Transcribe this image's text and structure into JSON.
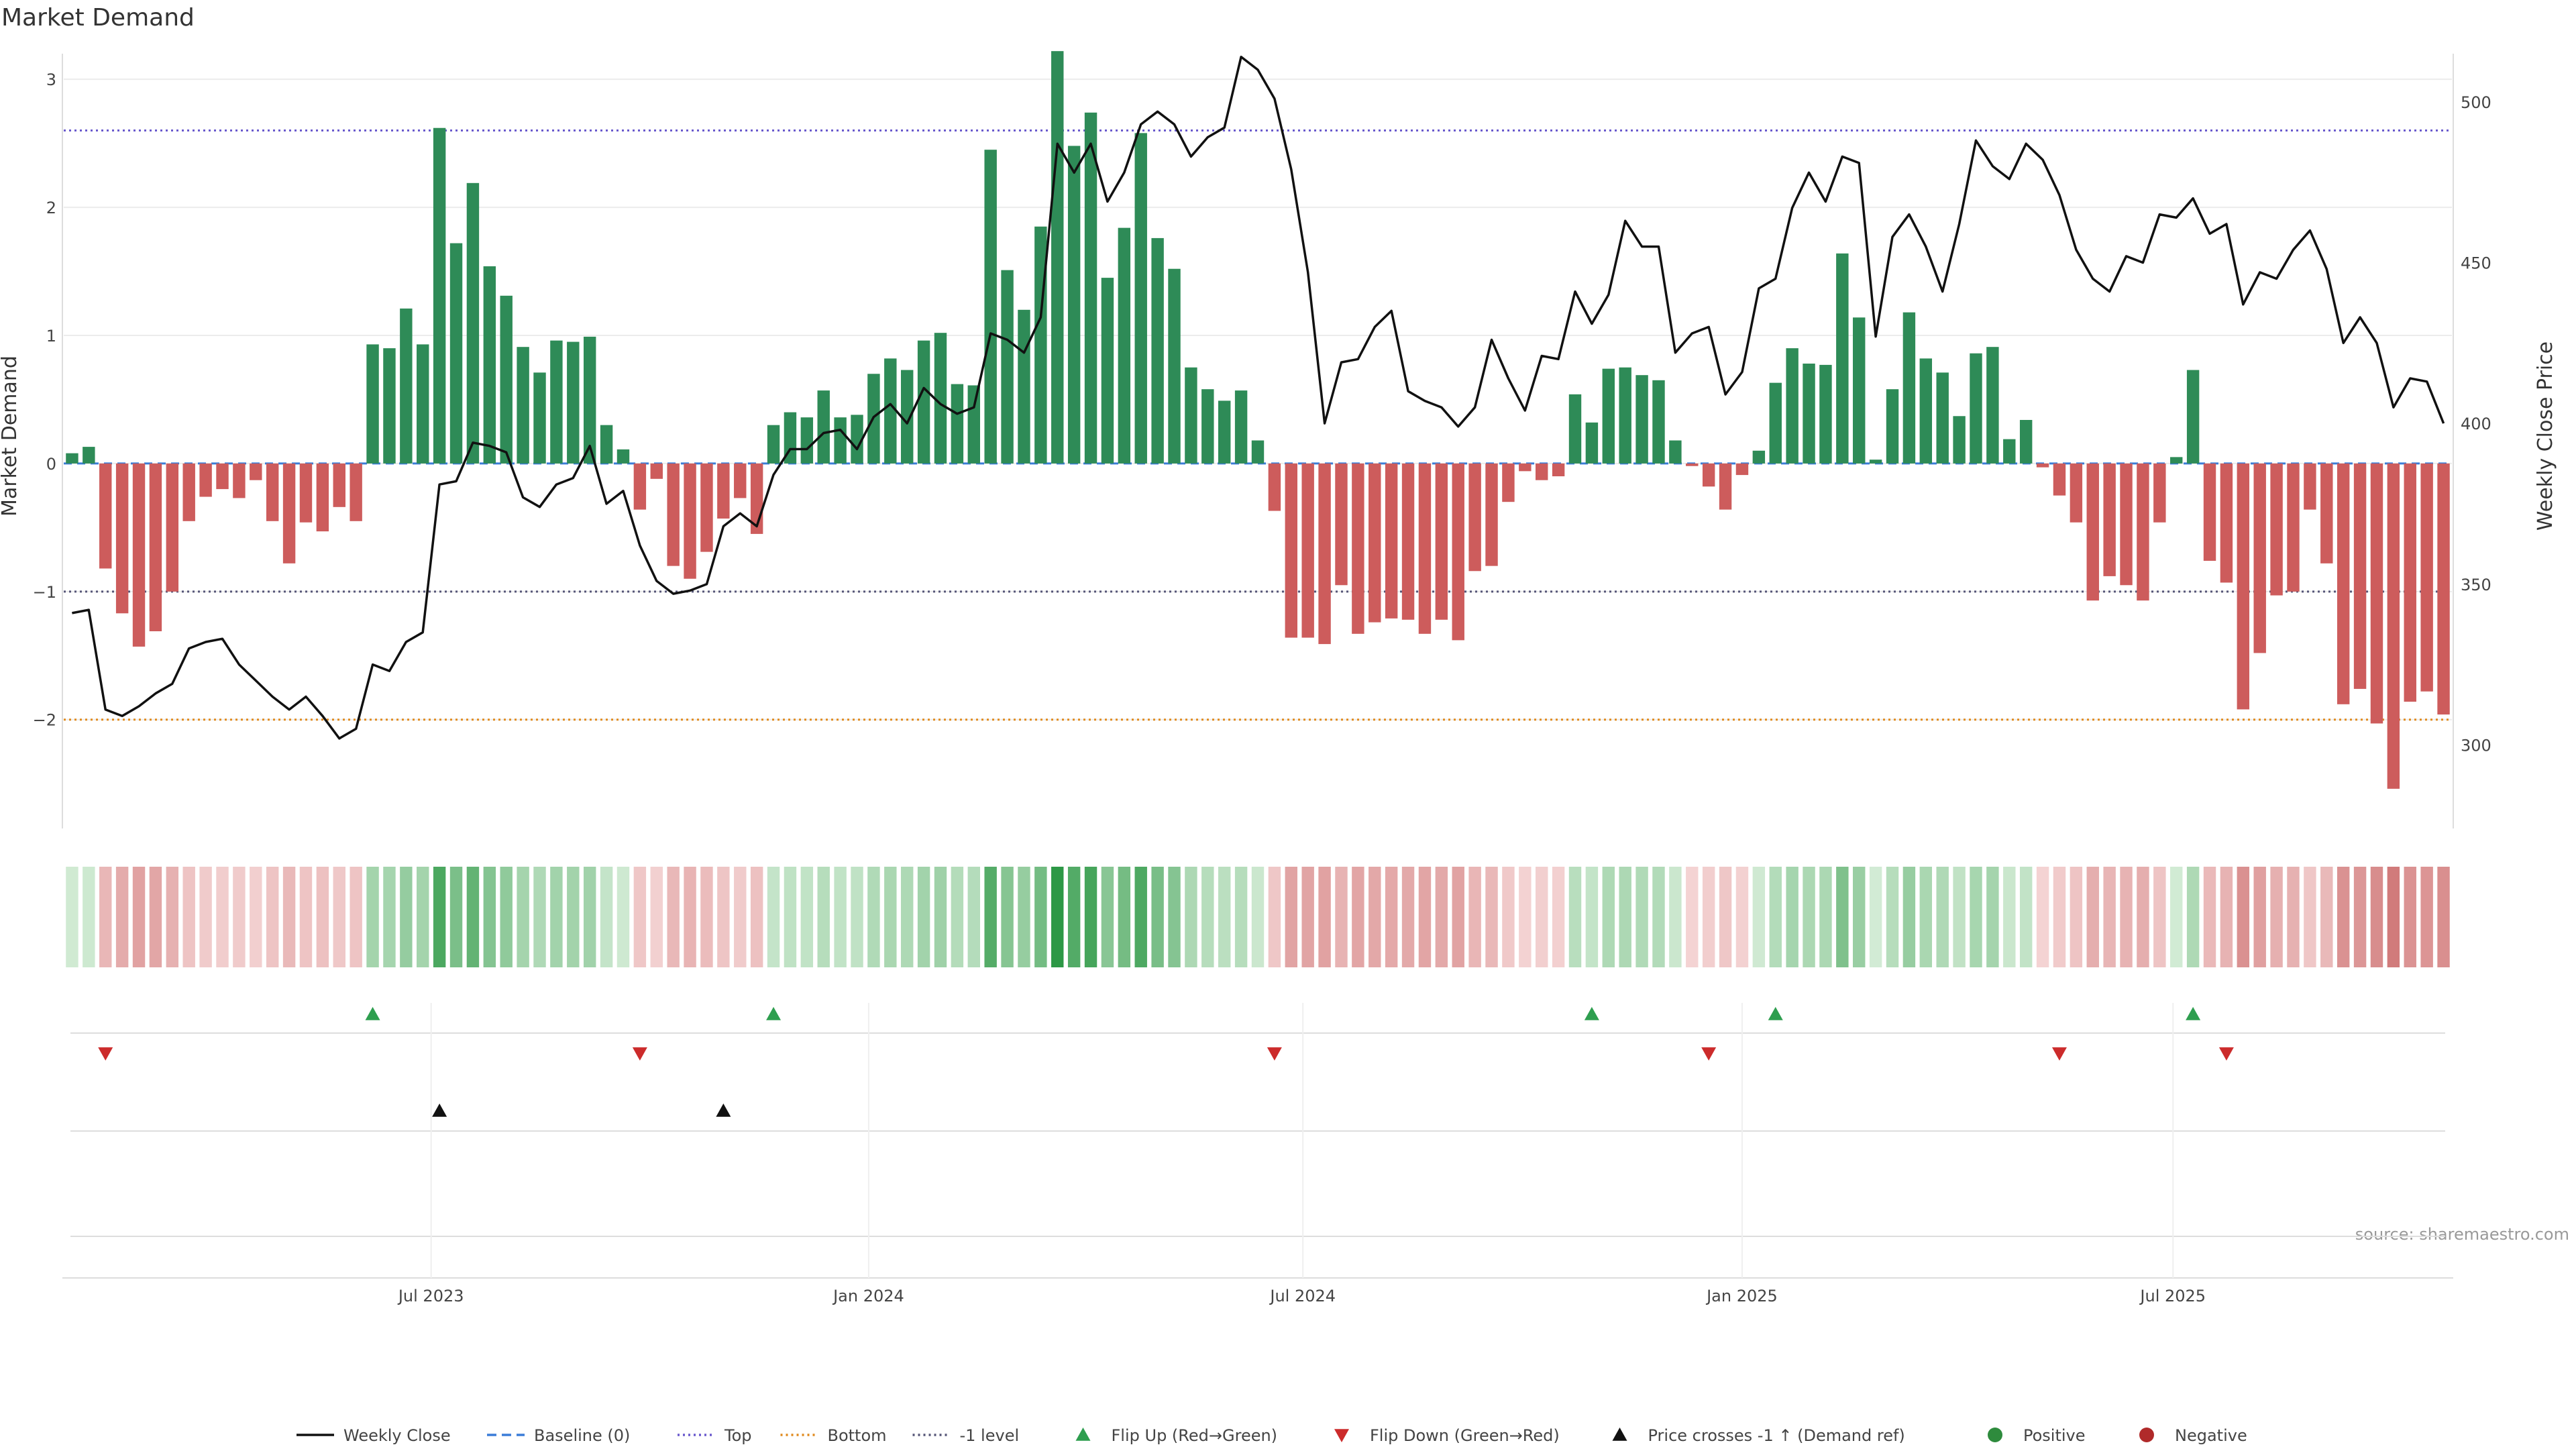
{
  "chart_data": {
    "type": "bar",
    "title": "Market Demand",
    "ylabel": "Market Demand",
    "ylabel_right": "Weekly Close Price",
    "ylim": [
      -2.85,
      3.2
    ],
    "ylim_right": [
      274,
      515
    ],
    "yticks": [
      {
        "v": 3,
        "label": "3"
      },
      {
        "v": 2,
        "label": "2"
      },
      {
        "v": 1,
        "label": "1"
      },
      {
        "v": 0,
        "label": "0"
      },
      {
        "v": -1,
        "label": "−1"
      },
      {
        "v": -2,
        "label": "−2"
      }
    ],
    "yticks_right": [
      {
        "v": 500,
        "label": "500"
      },
      {
        "v": 450,
        "label": "450"
      },
      {
        "v": 400,
        "label": "400"
      },
      {
        "v": 350,
        "label": "350"
      },
      {
        "v": 300,
        "label": "300"
      }
    ],
    "xticks": [
      {
        "week": 21.5,
        "label": "Jul 2023"
      },
      {
        "week": 47.7,
        "label": "Jan 2024"
      },
      {
        "week": 73.7,
        "label": "Jul 2024"
      },
      {
        "week": 100,
        "label": "Jan 2025"
      },
      {
        "week": 125.8,
        "label": "Jul 2025"
      }
    ],
    "reference_lines": [
      {
        "name": "Top",
        "value": 2.6,
        "color": "#6a5acd",
        "dash": "3,5"
      },
      {
        "name": "-1 level",
        "value": -1.0,
        "color": "#555577",
        "dash": "3,5"
      },
      {
        "name": "Bottom",
        "value": -2.0,
        "color": "#e08a1e",
        "dash": "3,5"
      },
      {
        "name": "Baseline (0)",
        "value": 0,
        "color": "#3b7dd8",
        "dash": "12,8"
      }
    ],
    "series": [
      {
        "name": "Market Demand",
        "values": [
          0.08,
          0.13,
          -0.82,
          -1.17,
          -1.43,
          -1.31,
          -1.0,
          -0.45,
          -0.26,
          -0.2,
          -0.27,
          -0.13,
          -0.45,
          -0.78,
          -0.46,
          -0.53,
          -0.34,
          -0.45,
          0.93,
          0.9,
          1.21,
          0.93,
          2.62,
          1.72,
          2.19,
          1.54,
          1.31,
          0.91,
          0.71,
          0.96,
          0.95,
          0.99,
          0.3,
          0.11,
          -0.36,
          -0.12,
          -0.8,
          -0.9,
          -0.69,
          -0.43,
          -0.27,
          -0.55,
          0.3,
          0.4,
          0.36,
          0.57,
          0.36,
          0.38,
          0.7,
          0.82,
          0.73,
          0.96,
          1.02,
          0.62,
          0.61,
          2.45,
          1.51,
          1.2,
          1.85,
          3.22,
          2.48,
          2.74,
          1.45,
          1.84,
          2.58,
          1.76,
          1.52,
          0.75,
          0.58,
          0.49,
          0.57,
          0.18,
          -0.37,
          -1.36,
          -1.36,
          -1.41,
          -0.95,
          -1.33,
          -1.24,
          -1.21,
          -1.22,
          -1.33,
          -1.22,
          -1.38,
          -0.84,
          -0.8,
          -0.3,
          -0.06,
          -0.13,
          -0.1,
          0.54,
          0.32,
          0.74,
          0.75,
          0.69,
          0.65,
          0.18,
          -0.02,
          -0.18,
          -0.36,
          -0.09,
          0.1,
          0.63,
          0.9,
          0.78,
          0.77,
          1.64,
          1.14,
          0.03,
          0.58,
          1.18,
          0.82,
          0.71,
          0.37,
          0.86,
          0.91,
          0.19,
          0.34,
          -0.03,
          -0.25,
          -0.46,
          -1.07,
          -0.88,
          -0.95,
          -1.07,
          -0.46,
          0.05,
          0.73,
          -0.76,
          -0.93,
          -1.92,
          -1.48,
          -1.03,
          -1.0,
          -0.36,
          -0.78,
          -1.88,
          -1.76,
          -2.03,
          -2.54,
          -1.86,
          -1.78,
          -1.96
        ]
      },
      {
        "name": "Weekly Close",
        "values": [
          341,
          342,
          311,
          309,
          312,
          316,
          319,
          330,
          332,
          333,
          325,
          320,
          315,
          311,
          315,
          309,
          302,
          305,
          325,
          323,
          332,
          335,
          381,
          382,
          394,
          393,
          391,
          377,
          374,
          381,
          383,
          393,
          375,
          379,
          362,
          351,
          347,
          348,
          350,
          368,
          372,
          368,
          384,
          392,
          392,
          397,
          398,
          392,
          402,
          406,
          400,
          411,
          406,
          403,
          405,
          428,
          426,
          422,
          433,
          487,
          478,
          487,
          469,
          478,
          493,
          497,
          493,
          483,
          489,
          492,
          514,
          510,
          501,
          479,
          447,
          400,
          419,
          420,
          430,
          435,
          410,
          407,
          405,
          399,
          405,
          426,
          414,
          404,
          421,
          420,
          441,
          431,
          440,
          463,
          455,
          455,
          422,
          428,
          430,
          409,
          416,
          442,
          445,
          467,
          478,
          469,
          483,
          481,
          427,
          458,
          465,
          455,
          441,
          462,
          488,
          480,
          476,
          487,
          482,
          471,
          454,
          445,
          441,
          452,
          450,
          465,
          464,
          470,
          459,
          462,
          437,
          447,
          445,
          454,
          460,
          448,
          425,
          433,
          425,
          405,
          414,
          413,
          400
        ],
        "color": "#111111"
      }
    ],
    "flip_up_weeks": [
      18,
      42,
      91,
      102,
      127
    ],
    "flip_down_weeks": [
      2,
      34,
      72,
      98,
      119,
      129
    ],
    "price_cross_weeks": [
      22,
      39
    ],
    "source": "source: sharemaestro.com",
    "legend": [
      {
        "label": "Weekly Close",
        "kind": "solid",
        "color": "#111111"
      },
      {
        "label": "Baseline (0)",
        "kind": "dash",
        "color": "#3b7dd8"
      },
      {
        "label": "Top",
        "kind": "dot",
        "color": "#6a5acd"
      },
      {
        "label": "Bottom",
        "kind": "dot",
        "color": "#e08a1e"
      },
      {
        "label": "-1 level",
        "kind": "dot",
        "color": "#555577"
      },
      {
        "label": "Flip Up (Red→Green)",
        "kind": "tri-up",
        "color": "#2e9e4f"
      },
      {
        "label": "Flip Down (Green→Red)",
        "kind": "tri-down",
        "color": "#cc2b2b"
      },
      {
        "label": "Price crosses -1 ↑ (Demand ref)",
        "kind": "tri-up",
        "color": "#111111"
      },
      {
        "label": "Positive",
        "kind": "dot-marker",
        "color": "#2e8b3d"
      },
      {
        "label": "Negative",
        "kind": "dot-marker",
        "color": "#b02a2a"
      }
    ],
    "colors": {
      "positive": "#2e8b57",
      "negative": "#cd5c5c"
    }
  }
}
